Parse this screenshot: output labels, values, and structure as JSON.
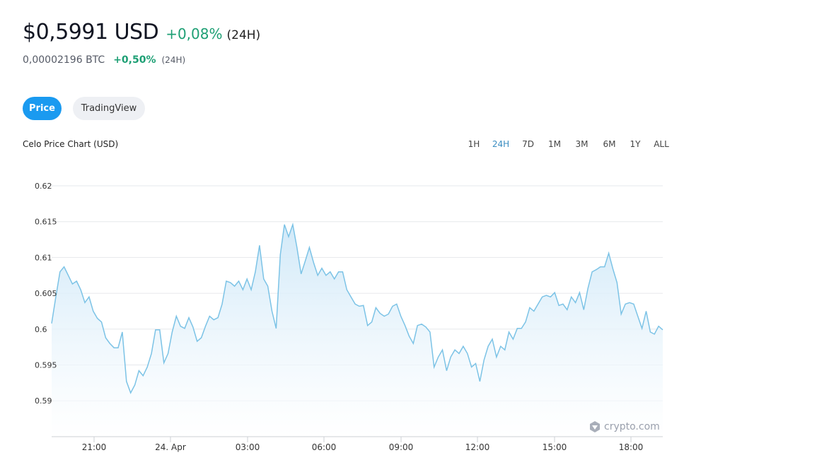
{
  "header": {
    "price": "$0,5991 USD",
    "change": "+0,08%",
    "period": "(24H)",
    "btc_price": "0,00002196 BTC",
    "btc_change": "+0,50%",
    "btc_period": "(24H)"
  },
  "tabs": [
    {
      "label": "Price",
      "active": true
    },
    {
      "label": "TradingView",
      "active": false
    }
  ],
  "ranges": [
    "1H",
    "24H",
    "7D",
    "1M",
    "3M",
    "6M",
    "1Y",
    "ALL"
  ],
  "active_range": "24H",
  "watermark": "crypto.com",
  "colors": {
    "accent": "#1a9af0",
    "positive": "#1d9f74",
    "line": "#7cc3e6"
  },
  "chart_data": {
    "type": "area",
    "title": "Celo Price Chart (USD)",
    "x_range": [
      "23 Apr 19:20",
      "24 Apr 19:15"
    ],
    "x_ticks": [
      "21:00",
      "24. Apr",
      "03:00",
      "06:00",
      "09:00",
      "12:00",
      "15:00",
      "18:00"
    ],
    "y_ticks": [
      "0.62",
      "0.615",
      "0.61",
      "0.605",
      "0.6",
      "0.595",
      "0.59"
    ],
    "ylim": [
      0.5875,
      0.62
    ],
    "grid": true,
    "values": [
      0.6008,
      0.6045,
      0.608,
      0.6087,
      0.6075,
      0.6063,
      0.6067,
      0.6055,
      0.6037,
      0.6045,
      0.6025,
      0.6015,
      0.601,
      0.5988,
      0.598,
      0.5974,
      0.5974,
      0.5996,
      0.5927,
      0.5911,
      0.5922,
      0.5942,
      0.5935,
      0.5947,
      0.5966,
      0.5999,
      0.5999,
      0.5953,
      0.5966,
      0.5996,
      0.6018,
      0.6004,
      0.6001,
      0.6016,
      0.6003,
      0.5983,
      0.5988,
      0.6004,
      0.6018,
      0.6013,
      0.6016,
      0.6035,
      0.6067,
      0.6065,
      0.606,
      0.6067,
      0.6055,
      0.607,
      0.6055,
      0.608,
      0.6117,
      0.607,
      0.606,
      0.6025,
      0.6001,
      0.6104,
      0.6146,
      0.6129,
      0.6146,
      0.6114,
      0.6077,
      0.6095,
      0.6114,
      0.6093,
      0.6075,
      0.6085,
      0.6075,
      0.608,
      0.607,
      0.608,
      0.608,
      0.6055,
      0.6045,
      0.6035,
      0.6032,
      0.6033,
      0.6005,
      0.601,
      0.603,
      0.6022,
      0.6018,
      0.6021,
      0.6032,
      0.6035,
      0.6018,
      0.6005,
      0.599,
      0.598,
      0.6005,
      0.6007,
      0.6003,
      0.5996,
      0.5947,
      0.5961,
      0.5971,
      0.5942,
      0.5961,
      0.5971,
      0.5966,
      0.5976,
      0.5966,
      0.5947,
      0.5952,
      0.5927,
      0.5957,
      0.5976,
      0.5986,
      0.5961,
      0.5976,
      0.5971,
      0.5996,
      0.5986,
      0.6001,
      0.6001,
      0.601,
      0.603,
      0.6025,
      0.6035,
      0.6045,
      0.6047,
      0.6045,
      0.6051,
      0.6033,
      0.6035,
      0.6027,
      0.6045,
      0.6037,
      0.6051,
      0.6027,
      0.6057,
      0.608,
      0.6083,
      0.6087,
      0.6087,
      0.6106,
      0.6084,
      0.6065,
      0.6021,
      0.6035,
      0.6037,
      0.6035,
      0.6018,
      0.6001,
      0.6025,
      0.5996,
      0.5993,
      0.6004,
      0.5999
    ]
  }
}
